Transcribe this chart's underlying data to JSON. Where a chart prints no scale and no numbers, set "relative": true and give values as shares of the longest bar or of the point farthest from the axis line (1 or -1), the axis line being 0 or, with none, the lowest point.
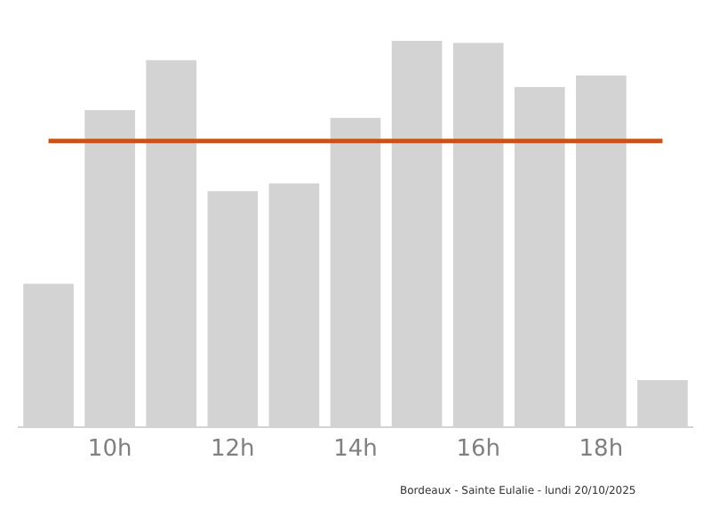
{
  "chart_data": {
    "type": "bar",
    "relative": true,
    "categories": [
      null,
      "10h",
      null,
      "12h",
      null,
      "14h",
      null,
      "16h",
      null,
      "18h",
      null
    ],
    "values": [
      0.37,
      0.82,
      0.95,
      0.61,
      0.63,
      0.8,
      1,
      0.995,
      0.88,
      0.91,
      0.12
    ],
    "color": "#d3d3d3",
    "ref_lines": [
      {
        "axis": "y",
        "value": 0.74,
        "color": "#c9511a",
        "line_style": "solid"
      }
    ],
    "annotations": [
      "Bordeaux - Sainte Eulalie - lundi 20/10/2025"
    ]
  }
}
